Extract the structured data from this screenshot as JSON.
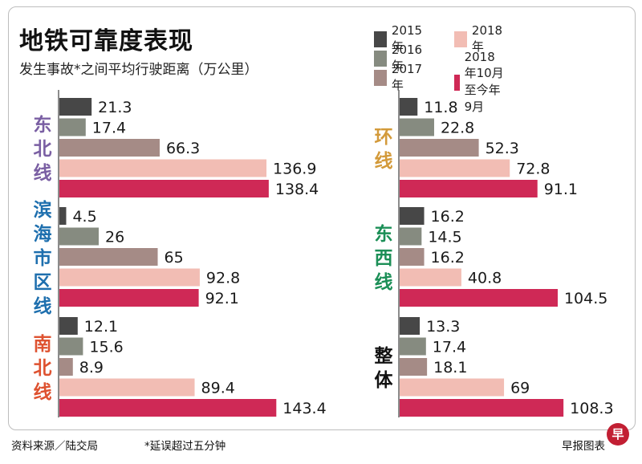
{
  "title": "地铁可靠度表现",
  "subtitle": "发生事故*之间平均行驶距离（万公里）",
  "legend": [
    {
      "name": "2015年",
      "color": "#474747"
    },
    {
      "name": "2016年",
      "color": "#868b80"
    },
    {
      "name": "2017年",
      "color": "#a58b86"
    },
    {
      "name": "2018年",
      "color": "#f2bdb4"
    },
    {
      "name": "2018年10月至今年9月",
      "color": "#cf2956"
    }
  ],
  "footer": {
    "source": "资料来源／陆交局",
    "note": "*延误超过五分钟",
    "credit": "早报图表",
    "logo_char": "早"
  },
  "chart_data": {
    "type": "bar",
    "orientation": "horizontal",
    "unit": "万公里",
    "series_names": [
      "2015年",
      "2016年",
      "2017年",
      "2018年",
      "2018年10月至今年9月"
    ],
    "series_colors": [
      "#474747",
      "#868b80",
      "#a58b86",
      "#f2bdb4",
      "#cf2956"
    ],
    "groups": [
      {
        "label": "东北线",
        "color": "#7a5fa3",
        "values": [
          21.3,
          17.4,
          66.3,
          136.9,
          138.4
        ]
      },
      {
        "label": "滨海市区线",
        "color": "#1e6fae",
        "values": [
          4.5,
          26,
          65,
          92.8,
          92.1
        ]
      },
      {
        "label": "南北线",
        "color": "#de5230",
        "values": [
          12.1,
          15.6,
          8.9,
          89.4,
          143.4
        ]
      },
      {
        "label": "环线",
        "color": "#d39a3a",
        "values": [
          11.8,
          22.8,
          52.3,
          72.8,
          91.1
        ]
      },
      {
        "label": "东西线",
        "color": "#1c8f57",
        "values": [
          16.2,
          14.5,
          16.2,
          40.8,
          104.5
        ]
      },
      {
        "label": "整体",
        "color": "#111111",
        "values": [
          13.3,
          17.4,
          18.1,
          69,
          108.3
        ]
      }
    ]
  }
}
